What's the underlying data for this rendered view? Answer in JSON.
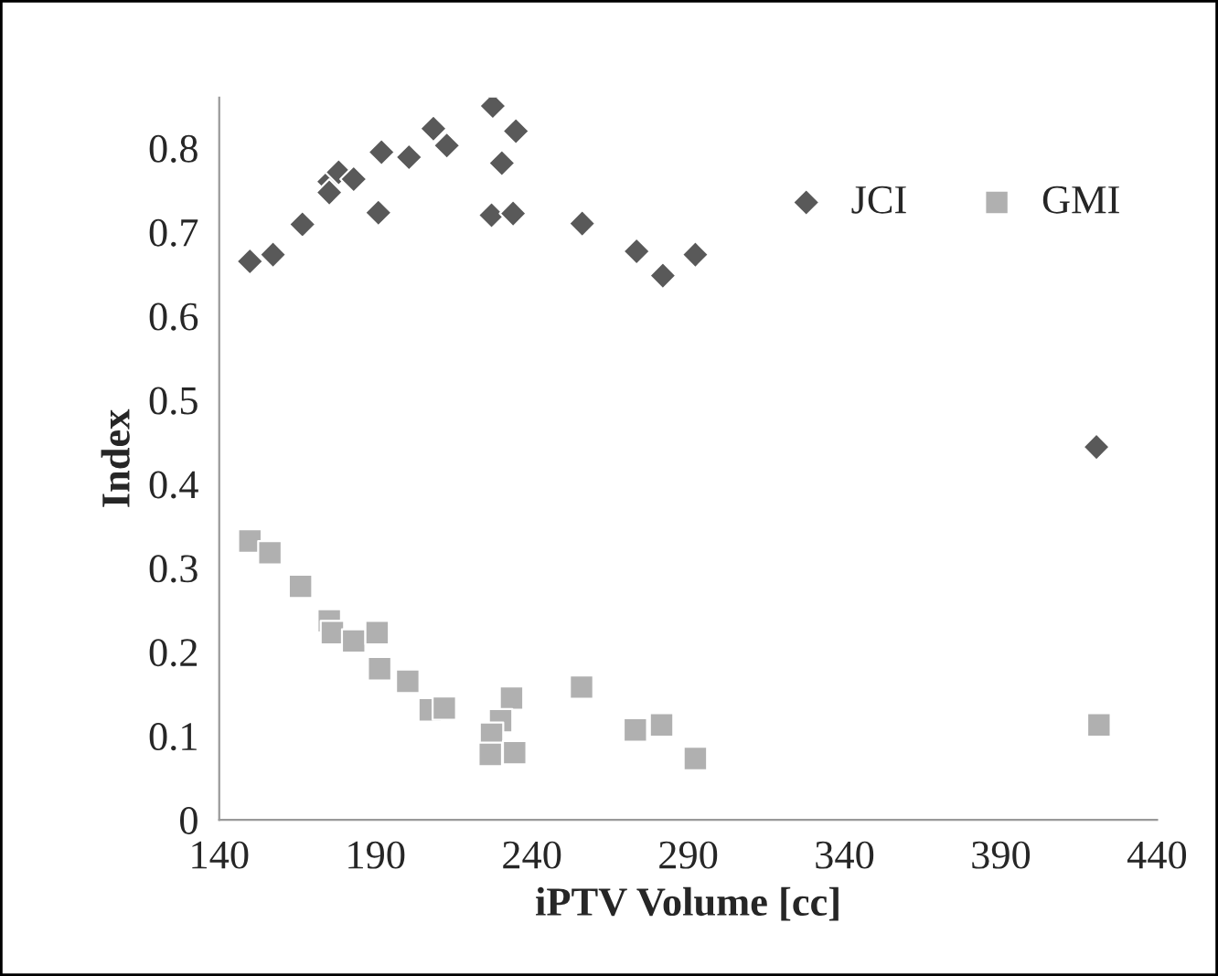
{
  "chart_data": {
    "type": "scatter",
    "xlabel": "iPTV Volume [cc]",
    "ylabel": "Index",
    "xlim": [
      140,
      440
    ],
    "xticks": [
      140,
      190,
      240,
      290,
      340,
      390,
      440
    ],
    "ylim": [
      0,
      0.86
    ],
    "yticks": [
      0,
      0.1,
      0.2,
      0.3,
      0.4,
      0.5,
      0.6,
      0.7,
      0.8
    ],
    "grid": false,
    "legend": "top right",
    "series": [
      {
        "name": "JCI",
        "color": "#595959",
        "marker": "diamond",
        "x": [
          149.8,
          157.2,
          166.6,
          175.2,
          178.2,
          183,
          175.2,
          190.9,
          191.9,
          200.7,
          208.5,
          212.8,
          227.5,
          234.9,
          230.4,
          227.1,
          234,
          256.1,
          273.5,
          281.9,
          292.3,
          420.6
        ],
        "values": [
          0.665,
          0.673,
          0.709,
          0.76,
          0.771,
          0.763,
          0.747,
          0.723,
          0.795,
          0.789,
          0.823,
          0.803,
          0.85,
          0.82,
          0.782,
          0.72,
          0.722,
          0.71,
          0.677,
          0.648,
          0.673,
          0.444
        ]
      },
      {
        "name": "GMI",
        "color": "#b0b0b0",
        "marker": "square",
        "x": [
          149.8,
          156.2,
          166,
          175.2,
          176.2,
          183,
          190.5,
          191.3,
          200.3,
          207.5,
          212,
          233.5,
          230,
          227.1,
          226.7,
          234.5,
          255.9,
          273.1,
          281.5,
          292.3,
          421.4
        ],
        "values": [
          0.332,
          0.318,
          0.278,
          0.237,
          0.223,
          0.213,
          0.223,
          0.18,
          0.165,
          0.131,
          0.133,
          0.145,
          0.118,
          0.102,
          0.078,
          0.08,
          0.158,
          0.107,
          0.113,
          0.073,
          0.113
        ]
      }
    ]
  }
}
